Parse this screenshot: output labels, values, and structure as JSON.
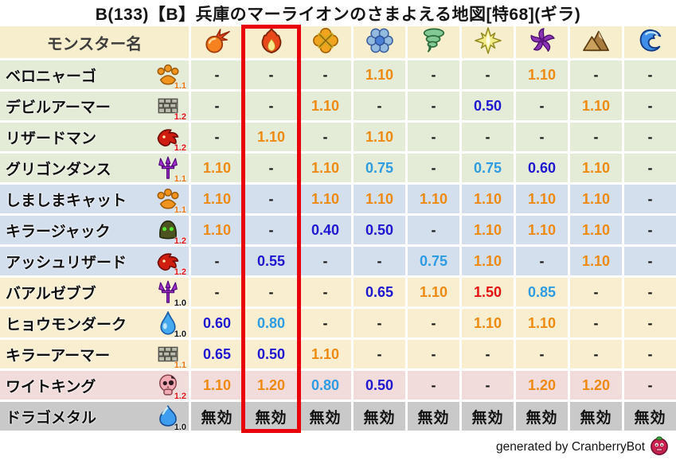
{
  "title": "B(133)【B】兵庫のマーライオンのさまよえる地図[特68](ギラ)",
  "header": {
    "name_column": "モンスター名"
  },
  "chart_data": {
    "type": "table",
    "highlighted_column_index": 1,
    "element_columns": [
      {
        "icon": "fireball-icon"
      },
      {
        "icon": "flame-icon"
      },
      {
        "icon": "explosion-icon"
      },
      {
        "icon": "snowflake-icon"
      },
      {
        "icon": "tornado-icon"
      },
      {
        "icon": "starburst-icon"
      },
      {
        "icon": "pinwheel-icon"
      },
      {
        "icon": "mountain-icon"
      },
      {
        "icon": "wave-icon"
      }
    ],
    "rows": [
      {
        "name": "ベロニャーゴ",
        "icon": "paw",
        "badge": "1.1",
        "group": "green",
        "values": [
          "-",
          "-",
          "-",
          "1.10",
          "-",
          "-",
          "1.10",
          "-",
          "-"
        ]
      },
      {
        "name": "デビルアーマー",
        "icon": "brick",
        "badge": "1.2",
        "group": "green",
        "values": [
          "-",
          "-",
          "1.10",
          "-",
          "-",
          "0.50",
          "-",
          "1.10",
          "-"
        ]
      },
      {
        "name": "リザードマン",
        "icon": "dragon",
        "badge": "1.2",
        "group": "green",
        "values": [
          "-",
          "1.10",
          "-",
          "1.10",
          "-",
          "-",
          "-",
          "-",
          "-"
        ]
      },
      {
        "name": "グリゴンダンス",
        "icon": "trident",
        "badge": "1.1",
        "group": "green",
        "values": [
          "1.10",
          "-",
          "1.10",
          "0.75",
          "-",
          "0.75",
          "0.60",
          "1.10",
          "-"
        ]
      },
      {
        "name": "しましまキャット",
        "icon": "paw",
        "badge": "1.1",
        "group": "blue",
        "values": [
          "1.10",
          "-",
          "1.10",
          "1.10",
          "1.10",
          "1.10",
          "1.10",
          "1.10",
          "-"
        ]
      },
      {
        "name": "キラージャック",
        "icon": "helmet",
        "badge": "1.2",
        "group": "blue",
        "values": [
          "1.10",
          "-",
          "0.40",
          "0.50",
          "-",
          "1.10",
          "1.10",
          "1.10",
          "-"
        ]
      },
      {
        "name": "アッシュリザード",
        "icon": "dragon",
        "badge": "1.2",
        "group": "blue",
        "values": [
          "-",
          "0.55",
          "-",
          "-",
          "0.75",
          "1.10",
          "-",
          "1.10",
          "-"
        ]
      },
      {
        "name": "バアルゼブブ",
        "icon": "trident",
        "badge": "1.0",
        "group": "cream",
        "values": [
          "-",
          "-",
          "-",
          "0.65",
          "1.10",
          "1.50",
          "0.85",
          "-",
          "-"
        ]
      },
      {
        "name": "ヒョウモンダーク",
        "icon": "drop",
        "badge": "1.0",
        "group": "cream",
        "values": [
          "0.60",
          "0.80",
          "-",
          "-",
          "-",
          "1.10",
          "1.10",
          "-",
          "-"
        ]
      },
      {
        "name": "キラーアーマー",
        "icon": "brick",
        "badge": "1.1",
        "group": "cream",
        "values": [
          "0.65",
          "0.50",
          "1.10",
          "-",
          "-",
          "-",
          "-",
          "-",
          "-"
        ]
      },
      {
        "name": "ワイトキング",
        "icon": "skull",
        "badge": "1.2",
        "group": "pink",
        "values": [
          "1.10",
          "1.20",
          "0.80",
          "0.50",
          "-",
          "-",
          "1.20",
          "1.20",
          "-"
        ]
      },
      {
        "name": "ドラゴメタル",
        "icon": "slime",
        "badge": "1.0",
        "group": "gray",
        "values": [
          "無効",
          "無効",
          "無効",
          "無効",
          "無効",
          "無効",
          "無効",
          "無効",
          "無効"
        ]
      }
    ]
  },
  "footer": {
    "text": "generated by CranberryBot",
    "icon": "cranberry-icon"
  },
  "colors": {
    "header_bg": "#f6eecd",
    "group_green": "#e4ebd7",
    "group_blue": "#d4dfee",
    "group_cream": "#f9efd0",
    "group_pink": "#f2dbdb",
    "group_gray": "#c9c9c9",
    "value_up_orange": "#ee8a10",
    "value_up_red": "#e51212",
    "value_down_lightblue": "#2d9ce2",
    "value_down_blue": "#1f17cf",
    "highlight_red": "#e8000a"
  }
}
